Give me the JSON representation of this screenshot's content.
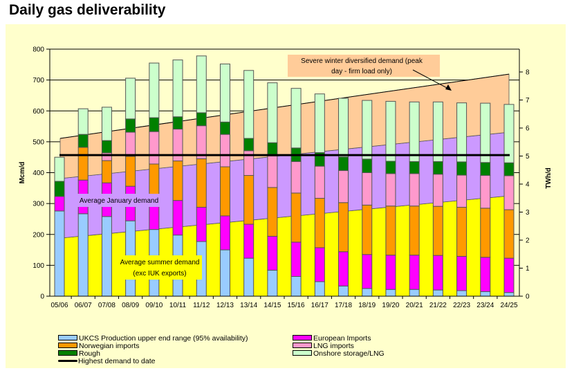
{
  "page": {
    "title": "Daily gas deliverability"
  },
  "chart_data": {
    "type": "bar",
    "subtype": "stacked-bar-with-areas",
    "title": "Daily gas deliverability",
    "xlabel": "",
    "ylabel": "Mcm/d",
    "y2label": "TWh/d",
    "ylim": [
      0,
      800
    ],
    "y2lim": [
      0,
      8.8
    ],
    "yticks": [
      "0",
      "100",
      "200",
      "300",
      "400",
      "500",
      "600",
      "700",
      "800"
    ],
    "y2ticks": [
      "0",
      "1",
      "2",
      "3",
      "4",
      "5",
      "6",
      "7",
      "8"
    ],
    "grid": true,
    "legend_position": "bottom",
    "categories": [
      "05/06",
      "06/07",
      "07/08",
      "08/09",
      "09/10",
      "10/11",
      "11/12",
      "12/13",
      "13/14",
      "14/15",
      "15/16",
      "16/17",
      "17/18",
      "18/19",
      "19/20",
      "20/21",
      "21/22",
      "22/23",
      "23/24",
      "24/25"
    ],
    "series": [
      {
        "name": "UKCS Production upper end range (95% availability)",
        "color": "#99ccff",
        "values": [
          276,
          267,
          258,
          244,
          216,
          198,
          177,
          150,
          123,
          84,
          64,
          47,
          33,
          25,
          22,
          22,
          20,
          18,
          15,
          12
        ]
      },
      {
        "name": "European Imports",
        "color": "#ff00ff",
        "values": [
          47,
          109,
          109,
          112,
          100,
          112,
          111,
          110,
          110,
          110,
          111,
          110,
          111,
          110,
          111,
          111,
          112,
          111,
          111,
          111
        ]
      },
      {
        "name": "Norwegian imports",
        "color": "#ff9900",
        "values": [
          0,
          106,
          72,
          97,
          112,
          128,
          157,
          159,
          158,
          158,
          159,
          160,
          159,
          160,
          159,
          159,
          159,
          159,
          159,
          157
        ]
      },
      {
        "name": "LNG imports",
        "color": "#ff99cc",
        "values": [
          0,
          0,
          25,
          78,
          105,
          103,
          107,
          105,
          80,
          102,
          102,
          104,
          104,
          105,
          105,
          105,
          104,
          104,
          106,
          110
        ]
      },
      {
        "name": "Rough",
        "color": "#008000",
        "values": [
          49,
          42,
          40,
          43,
          45,
          40,
          42,
          40,
          40,
          43,
          44,
          44,
          44,
          44,
          40,
          39,
          41,
          43,
          42,
          42
        ]
      },
      {
        "name": "Onshore storage/LNG",
        "color": "#ccffcc",
        "values": [
          78,
          83,
          108,
          132,
          177,
          184,
          184,
          188,
          220,
          194,
          193,
          190,
          190,
          190,
          194,
          193,
          193,
          191,
          192,
          189
        ]
      }
    ],
    "areas": [
      {
        "name": "Average summer demand (exc IUK exports)",
        "color": "#ffff00",
        "start": 188,
        "end": 325
      },
      {
        "name": "Average January demand",
        "color": "#cc99ff",
        "start": 381,
        "end": 531
      },
      {
        "name": "Severe winter diversified demand (peak day - firm load only)",
        "color": "#ffcc99",
        "start": 511,
        "end": 719
      }
    ],
    "reference_line": {
      "name": "Highest demand to date",
      "color": "#000000",
      "value": 457
    },
    "annotations": {
      "severe_winter": [
        "Severe winter diversified demand (peak",
        "day - firm load only)"
      ],
      "january": "Average January demand",
      "summer": [
        "Average summer demand",
        "(exc IUK exports)"
      ]
    },
    "legend": [
      {
        "label": "UKCS Production upper end range (95% availability)",
        "color": "#99ccff",
        "kind": "box"
      },
      {
        "label": "Norwegian imports",
        "color": "#ff9900",
        "kind": "box"
      },
      {
        "label": "Rough",
        "color": "#008000",
        "kind": "box"
      },
      {
        "label": "Highest demand to date",
        "color": "#000000",
        "kind": "line"
      },
      {
        "label": "European Imports",
        "color": "#ff00ff",
        "kind": "box"
      },
      {
        "label": "LNG imports",
        "color": "#ff99cc",
        "kind": "box"
      },
      {
        "label": "Onshore storage/LNG",
        "color": "#ccffcc",
        "kind": "box"
      }
    ]
  }
}
